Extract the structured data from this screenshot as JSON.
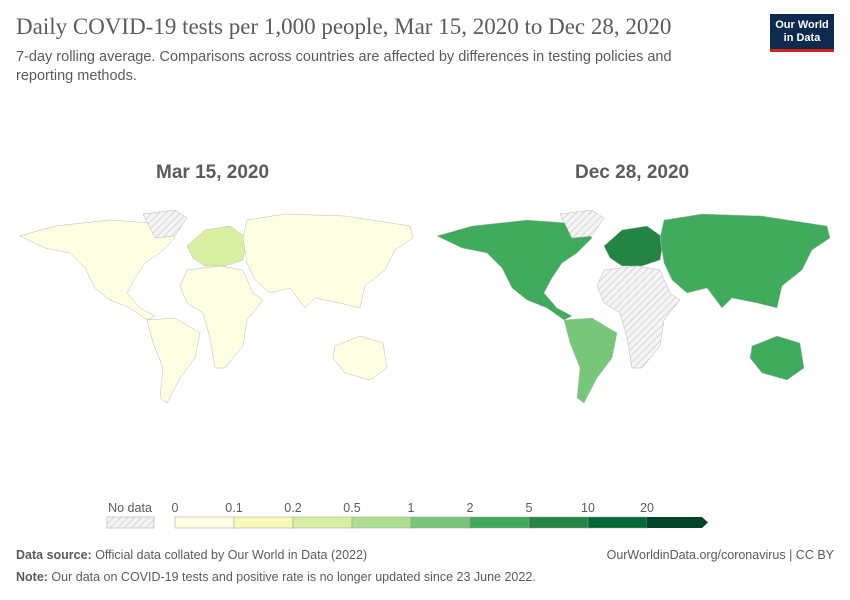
{
  "title": "Daily COVID-19 tests per 1,000 people, Mar 15, 2020 to Dec 28, 2020",
  "subtitle": "7-day rolling average. Comparisons across countries are affected by differences in testing policies and reporting methods.",
  "logo": {
    "line1": "Our World",
    "line2": "in Data"
  },
  "chart_data": {
    "type": "map",
    "maps": [
      {
        "label": "Mar 15, 2020",
        "regions": {
          "north_america": "0-0.1",
          "greenland": "no data",
          "south_america": "0-0.1",
          "europe": "0.2-0.5",
          "africa": "0-0.1",
          "asia": "0-0.1",
          "australia": "0-0.1"
        }
      },
      {
        "label": "Dec 28, 2020",
        "regions": {
          "north_america": "2-5",
          "greenland": "no data",
          "south_america": "1-2",
          "europe": "5-10",
          "africa": "no data",
          "asia": "2-5",
          "australia": "2-5"
        }
      }
    ],
    "legend": {
      "no_data_label": "No data",
      "ticks": [
        "0",
        "0.1",
        "0.2",
        "0.5",
        "1",
        "2",
        "5",
        "10",
        "20"
      ],
      "bins": [
        "0-0.1",
        "0.1-0.2",
        "0.2-0.5",
        "0.5-1",
        "1-2",
        "2-5",
        "5-10",
        "10-20",
        "20+"
      ],
      "colors": [
        "#fefee2",
        "#f6fbb8",
        "#d9f0a3",
        "#addd8e",
        "#78c679",
        "#41ab5d",
        "#238443",
        "#006837",
        "#00452a"
      ]
    }
  },
  "footer": {
    "source_label": "Data source:",
    "source_text": " Official data collated by Our World in Data (2022)",
    "note_label": "Note:",
    "note_text": " Our data on COVID-19 tests and positive rate is no longer updated since 23 June 2022.",
    "link": "OurWorldinData.org/coronavirus | CC BY"
  }
}
